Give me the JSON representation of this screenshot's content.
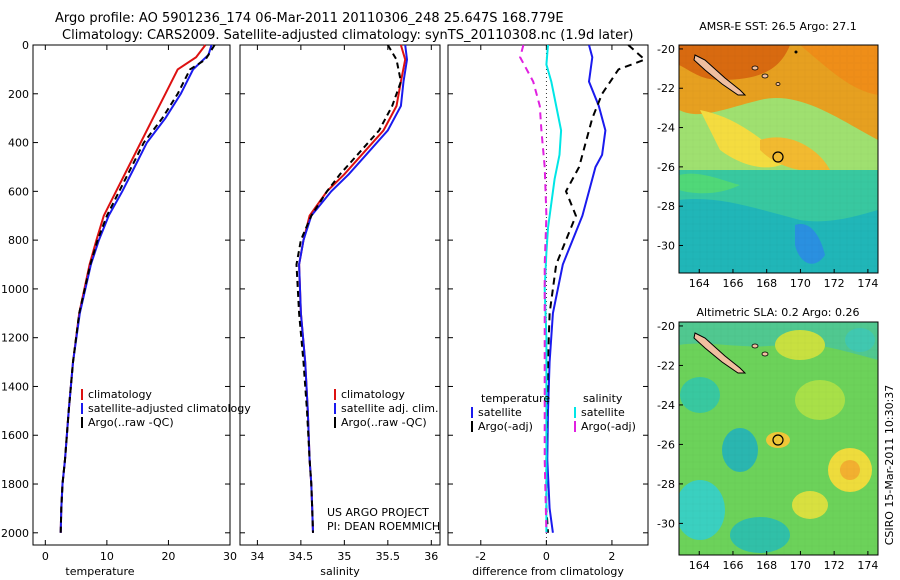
{
  "header": {
    "title_line1": "Argo profile: AO 5901236_174 06-Mar-2011 20110306_248 25.647S 168.779E",
    "title_line2": "Climatology: CARS2009. Satellite-adjusted climatology: synTS_20110308.nc (1.9d later)"
  },
  "colors": {
    "climatology": "#dd1111",
    "satellite": "#1a1aee",
    "argo": "#000000",
    "satellite_salinity": "#00e6e6",
    "argo_adj_salinity": "#e020e0"
  },
  "chart_data": [
    {
      "type": "line",
      "xlabel": "temperature",
      "xlim": [
        -2,
        30
      ],
      "ylim": [
        2050,
        0
      ],
      "xticks": [
        "0",
        "10",
        "20",
        "30"
      ],
      "yticks": [
        "0",
        "200",
        "400",
        "600",
        "800",
        "1000",
        "1200",
        "1400",
        "1600",
        "1800",
        "2000"
      ],
      "series": [
        {
          "name": "climatology",
          "x": [
            26.0,
            24.5,
            21.5,
            19.5,
            17.5,
            15.5,
            13.5,
            11.5,
            9.5,
            8.3,
            7.2,
            5.5,
            4.5,
            3.8,
            3.2,
            2.8,
            2.6,
            2.5
          ],
          "y": [
            0,
            50,
            100,
            200,
            300,
            400,
            500,
            600,
            700,
            800,
            900,
            1100,
            1300,
            1500,
            1700,
            1800,
            1900,
            2000
          ]
        },
        {
          "name": "satellite-adjusted climatology",
          "x": [
            27.0,
            26.5,
            24.0,
            22.0,
            19.5,
            16.5,
            14.5,
            12.5,
            10.3,
            8.7,
            7.4,
            5.6,
            4.5,
            3.8,
            3.2,
            2.8,
            2.6,
            2.5
          ],
          "y": [
            0,
            40,
            100,
            200,
            300,
            400,
            500,
            600,
            700,
            800,
            900,
            1100,
            1300,
            1500,
            1700,
            1800,
            1900,
            2000
          ]
        },
        {
          "name": "Argo(..raw -QC)",
          "x": [
            27.5,
            26.0,
            23.5,
            21.5,
            19.0,
            16.0,
            14.0,
            12.0,
            10.0,
            8.5,
            7.3,
            5.5,
            4.5,
            3.8,
            3.2,
            2.8,
            2.6,
            2.5
          ],
          "y": [
            0,
            60,
            100,
            200,
            300,
            400,
            500,
            600,
            700,
            800,
            900,
            1100,
            1300,
            1500,
            1700,
            1800,
            1900,
            2000
          ]
        }
      ],
      "legend": [
        "climatology",
        "satellite-adjusted climatology",
        "Argo(..raw -QC)"
      ]
    },
    {
      "type": "line",
      "xlabel": "salinity",
      "xlim": [
        33.8,
        36.1
      ],
      "ylim": [
        2050,
        0
      ],
      "xticks": [
        "34",
        "34.5",
        "35",
        "35.5",
        "36"
      ],
      "series": [
        {
          "name": "climatology",
          "x": [
            35.65,
            35.7,
            35.65,
            35.6,
            35.45,
            35.2,
            35.0,
            34.8,
            34.6,
            34.53,
            34.48,
            34.5,
            34.55,
            34.58,
            34.6,
            34.62,
            34.63,
            34.64
          ],
          "y": [
            0,
            60,
            150,
            250,
            350,
            450,
            530,
            600,
            700,
            800,
            900,
            1100,
            1300,
            1500,
            1700,
            1800,
            1900,
            2000
          ]
        },
        {
          "name": "satellite adj. clim.",
          "x": [
            35.7,
            35.72,
            35.68,
            35.65,
            35.5,
            35.25,
            35.05,
            34.85,
            34.62,
            34.53,
            34.48,
            34.5,
            34.55,
            34.58,
            34.6,
            34.62,
            34.63,
            34.64
          ],
          "y": [
            0,
            60,
            150,
            250,
            350,
            450,
            530,
            600,
            700,
            800,
            900,
            1100,
            1300,
            1500,
            1700,
            1800,
            1900,
            2000
          ]
        },
        {
          "name": "Argo(..raw -QC)",
          "x": [
            35.5,
            35.6,
            35.65,
            35.55,
            35.4,
            35.15,
            34.95,
            34.8,
            34.62,
            34.5,
            34.45,
            34.48,
            34.53,
            34.57,
            34.6,
            34.62,
            34.63,
            34.64
          ],
          "y": [
            0,
            60,
            150,
            250,
            350,
            450,
            530,
            600,
            700,
            800,
            900,
            1100,
            1300,
            1500,
            1700,
            1800,
            1900,
            2000
          ]
        }
      ],
      "legend": [
        "climatology",
        "satellite adj. clim.",
        "Argo(..raw -QC)"
      ],
      "annotation": [
        "US ARGO PROJECT",
        "PI: DEAN ROEMMICH"
      ]
    },
    {
      "type": "line",
      "xlabel": "difference from climatology",
      "xlim": [
        -3,
        3.1
      ],
      "ylim": [
        2050,
        0
      ],
      "xticks": [
        "-2",
        "0",
        "2"
      ],
      "series": [
        {
          "name": "temperature satellite",
          "x": [
            1.3,
            1.4,
            1.3,
            1.6,
            1.8,
            1.7,
            1.5,
            1.3,
            1.1,
            0.8,
            0.5,
            0.2,
            0.1,
            0.05,
            0.03,
            0.1,
            0.2
          ],
          "y": [
            0,
            50,
            150,
            250,
            350,
            450,
            500,
            600,
            700,
            800,
            900,
            1100,
            1300,
            1500,
            1700,
            1900,
            2000
          ]
        },
        {
          "name": "temperature Argo(-adj)",
          "x": [
            2.5,
            3.0,
            2.2,
            1.7,
            1.4,
            1.2,
            1.0,
            0.6,
            0.9,
            0.6,
            0.3,
            0.1,
            0.05,
            0.02,
            0.0,
            0.0,
            0.05
          ],
          "y": [
            0,
            60,
            100,
            200,
            300,
            400,
            500,
            600,
            700,
            800,
            900,
            1100,
            1300,
            1500,
            1700,
            1900,
            2000
          ]
        },
        {
          "name": "salinity satellite",
          "x": [
            0.05,
            0.0,
            0.15,
            0.3,
            0.45,
            0.4,
            0.25,
            0.15,
            0.05,
            0.0,
            -0.05,
            0.0,
            0.0,
            0.0,
            0.0,
            0.0
          ],
          "y": [
            0,
            80,
            150,
            250,
            350,
            450,
            550,
            650,
            750,
            850,
            1000,
            1200,
            1400,
            1600,
            1800,
            2000
          ]
        },
        {
          "name": "salinity Argo(-adj)",
          "x": [
            -0.7,
            -0.8,
            -0.4,
            -0.2,
            -0.15,
            -0.05,
            0.0,
            -0.05,
            -0.05,
            -0.05,
            -0.05,
            -0.05,
            0.0
          ],
          "y": [
            0,
            50,
            150,
            250,
            350,
            500,
            700,
            900,
            1100,
            1300,
            1500,
            1700,
            2000
          ]
        }
      ],
      "legend_headers": [
        "temperature",
        "salinity"
      ],
      "legend": [
        "satellite",
        "Argo(-adj)",
        "satellite",
        "Argo(-adj)"
      ]
    }
  ],
  "maps": [
    {
      "title": "AMSR-E SST: 26.5 Argo: 27.1",
      "yticks": [
        "-20",
        "-22",
        "-24",
        "-26",
        "-28",
        "-30"
      ],
      "xticks": [
        "164",
        "166",
        "168",
        "170",
        "172",
        "174"
      ]
    },
    {
      "title": "Altimetric SLA: 0.2 Argo: 0.26",
      "yticks": [
        "-20",
        "-22",
        "-24",
        "-26",
        "-28",
        "-30"
      ],
      "xticks": [
        "164",
        "166",
        "168",
        "170",
        "172",
        "174"
      ]
    }
  ],
  "side_label": "CSIRO 15-Mar-2011 10:30:37"
}
